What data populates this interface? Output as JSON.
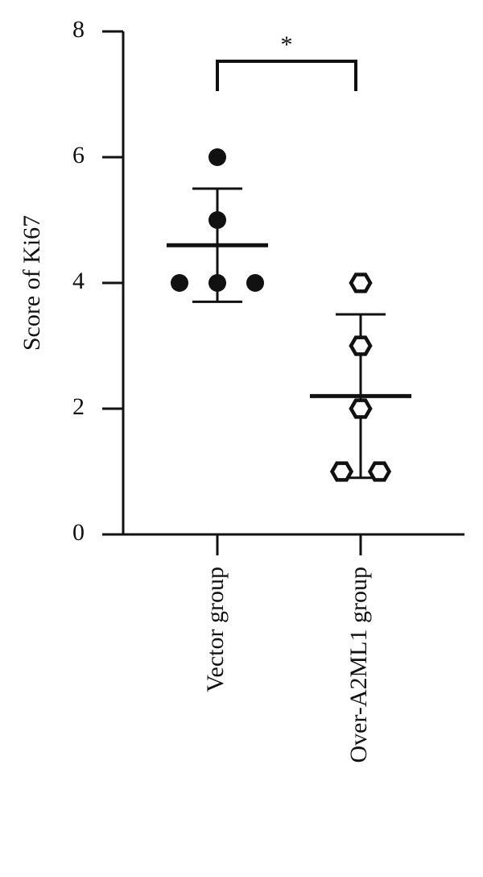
{
  "chart_data": {
    "type": "scatter",
    "y_label": "Score of Ki67",
    "categories": [
      "Vector group",
      "Over-A2ML1 group"
    ],
    "values": [
      [
        6,
        5,
        4,
        4,
        4
      ],
      [
        4,
        3,
        2,
        1,
        1
      ]
    ],
    "means": [
      4.6,
      2.2
    ],
    "sd": [
      0.9,
      1.3
    ],
    "markers": [
      "filled-circle",
      "open-hexagon"
    ],
    "significance": "*",
    "ylim": [
      0,
      8
    ],
    "yticks": [
      0,
      2,
      4,
      6,
      8
    ]
  }
}
